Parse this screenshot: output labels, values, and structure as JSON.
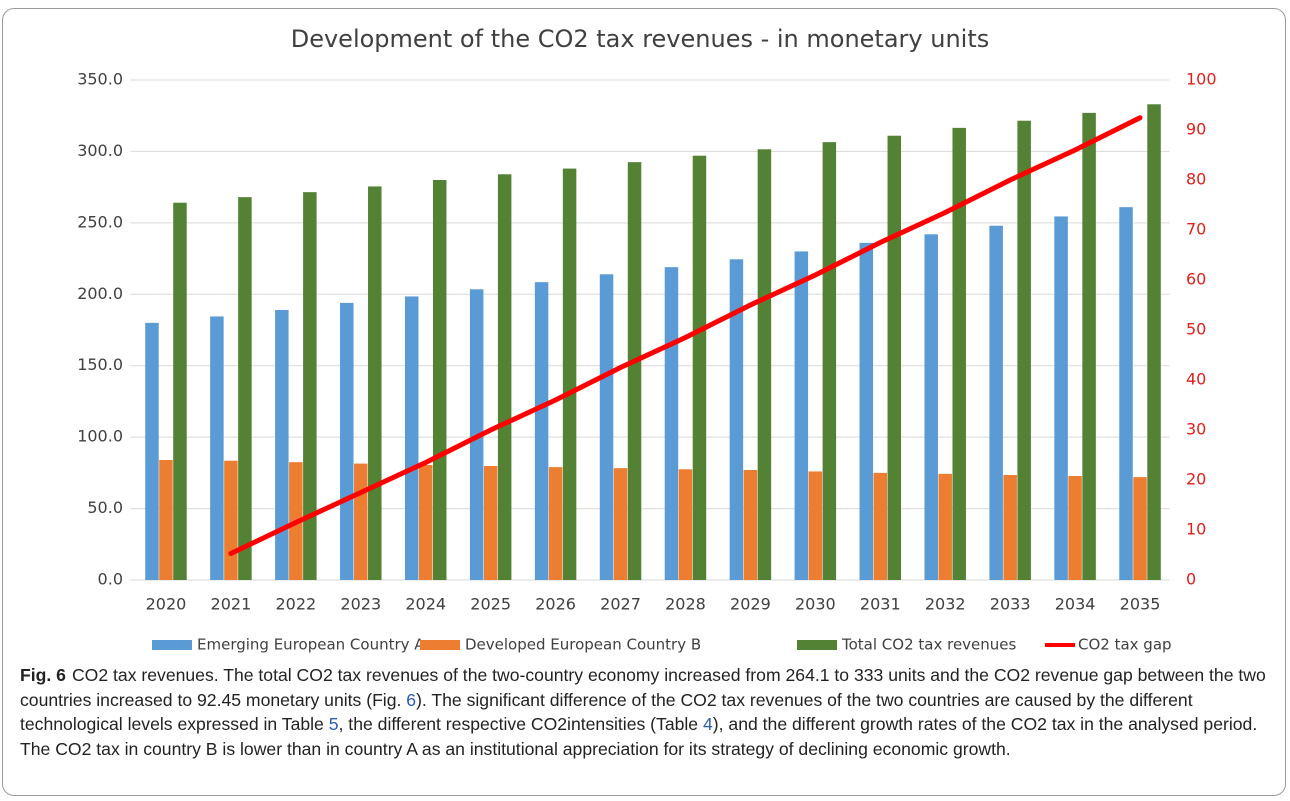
{
  "chart_data": {
    "type": "bar",
    "title": "Development of the CO2 tax revenues - in monetary units",
    "categories": [
      "2020",
      "2021",
      "2022",
      "2023",
      "2024",
      "2025",
      "2026",
      "2027",
      "2028",
      "2029",
      "2030",
      "2031",
      "2032",
      "2033",
      "2034",
      "2035"
    ],
    "series": [
      {
        "name": "Emerging European Country A",
        "color": "#5b9bd5",
        "type": "bar",
        "values": [
          180,
          184.5,
          189,
          194,
          198.5,
          203.5,
          208.5,
          214,
          219,
          224.5,
          230,
          236,
          242,
          248,
          254.5,
          261
        ]
      },
      {
        "name": "Developed European Country B",
        "color": "#ed7d31",
        "type": "bar",
        "values": [
          84,
          83.5,
          82.5,
          81.5,
          80.5,
          79.8,
          79,
          78.3,
          77.5,
          77,
          76,
          75,
          74.3,
          73.5,
          72.8,
          72
        ]
      },
      {
        "name": "Total CO2 tax revenues",
        "color": "#548235",
        "type": "bar",
        "values": [
          264.1,
          268,
          271.5,
          275.5,
          280,
          284,
          288,
          292.5,
          297,
          301.5,
          306.5,
          311,
          316.5,
          321.5,
          327,
          333
        ]
      },
      {
        "name": "CO2 tax gap",
        "color": "#ff0000",
        "type": "line",
        "axis": "y2",
        "values": [
          null,
          5.3,
          11.5,
          17.5,
          23.5,
          30,
          36,
          42.5,
          48.5,
          55,
          61,
          67.5,
          73.5,
          80,
          86,
          92.45
        ]
      }
    ],
    "ylim": [
      0,
      350
    ],
    "yticks": [
      {
        "value": 0,
        "label": "0.0"
      },
      {
        "value": 50,
        "label": "50.0"
      },
      {
        "value": 100,
        "label": "100.0"
      },
      {
        "value": 150,
        "label": "150.0"
      },
      {
        "value": 200,
        "label": "200.0"
      },
      {
        "value": 250,
        "label": "250.0"
      },
      {
        "value": 300,
        "label": "300.0"
      },
      {
        "value": 350,
        "label": "350.0"
      }
    ],
    "y2lim": [
      0,
      100
    ],
    "y2ticks": [
      0,
      10,
      20,
      30,
      40,
      50,
      60,
      70,
      80,
      90,
      100
    ],
    "y2_color": "#e0201b",
    "grid": true,
    "legend": "bottom"
  },
  "caption": {
    "label": "Fig. 6",
    "parts": [
      {
        "text": "CO2 tax revenues. The total CO2 tax revenues of the two-country economy increased from 264.1 to 333 units and the CO2 revenue gap between the two countries increased to 92.45 monetary units (Fig. ",
        "link": false
      },
      {
        "text": "6",
        "link": true
      },
      {
        "text": "). The significant difference of the CO2 tax revenues of the two countries are caused by the different technological levels expressed in Table ",
        "link": false
      },
      {
        "text": "5",
        "link": true
      },
      {
        "text": ", the different respective CO2intensities (Table ",
        "link": false
      },
      {
        "text": "4",
        "link": true
      },
      {
        "text": "), and the different growth rates of the CO2 tax in the analysed period. The CO2 tax in country B is lower than in country A as an institutional appreciation for its strategy of declining economic growth.",
        "link": false
      }
    ]
  }
}
